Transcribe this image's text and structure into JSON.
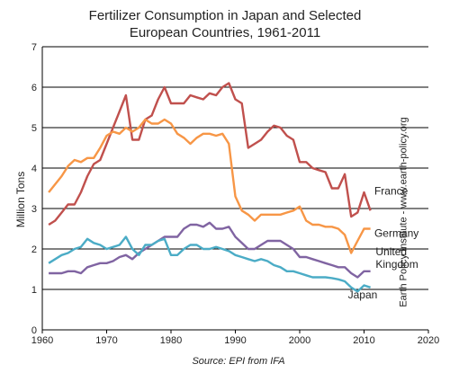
{
  "chart_data": {
    "type": "line",
    "title": [
      "Fertilizer Consumption in Japan and Selected",
      "European Countries, 1961-2011"
    ],
    "ylabel": "Million Tons",
    "source": "Source: EPI from IFA",
    "side_note": "Earth Policy Institute - www.earth-policy.org",
    "xlim": [
      1960,
      2020
    ],
    "ylim": [
      0,
      7
    ],
    "x_ticks": [
      1960,
      1970,
      1980,
      1990,
      2000,
      2010,
      2020
    ],
    "y_ticks": [
      0,
      1,
      2,
      3,
      4,
      5,
      6,
      7
    ],
    "grid": "horizontal",
    "x": [
      1961,
      1962,
      1963,
      1964,
      1965,
      1966,
      1967,
      1968,
      1969,
      1970,
      1971,
      1972,
      1973,
      1974,
      1975,
      1976,
      1977,
      1978,
      1979,
      1980,
      1981,
      1982,
      1983,
      1984,
      1985,
      1986,
      1987,
      1988,
      1989,
      1990,
      1991,
      1992,
      1993,
      1994,
      1995,
      1996,
      1997,
      1998,
      1999,
      2000,
      2001,
      2002,
      2003,
      2004,
      2005,
      2006,
      2007,
      2008,
      2009,
      2010,
      2011
    ],
    "series": [
      {
        "name": "France",
        "label": "France",
        "color": "#c0504d",
        "values": [
          2.6,
          2.7,
          2.9,
          3.1,
          3.1,
          3.4,
          3.8,
          4.1,
          4.2,
          4.6,
          5.0,
          5.4,
          5.8,
          4.7,
          4.7,
          5.2,
          5.3,
          5.7,
          6.0,
          5.6,
          5.6,
          5.6,
          5.8,
          5.75,
          5.7,
          5.85,
          5.8,
          6.0,
          6.1,
          5.7,
          5.6,
          4.5,
          4.6,
          4.7,
          4.9,
          5.05,
          5.0,
          4.8,
          4.7,
          4.15,
          4.15,
          4.0,
          3.95,
          3.9,
          3.5,
          3.5,
          3.85,
          2.8,
          2.9,
          3.4,
          2.95
        ]
      },
      {
        "name": "Germany",
        "label": "Germany",
        "color": "#f79646",
        "values": [
          3.4,
          3.6,
          3.8,
          4.05,
          4.2,
          4.15,
          4.25,
          4.25,
          4.5,
          4.8,
          4.9,
          4.85,
          5.0,
          4.9,
          5.0,
          5.2,
          5.1,
          5.1,
          5.2,
          5.1,
          4.85,
          4.75,
          4.6,
          4.75,
          4.85,
          4.85,
          4.8,
          4.85,
          4.6,
          3.3,
          2.95,
          2.85,
          2.7,
          2.85,
          2.85,
          2.85,
          2.85,
          2.9,
          2.95,
          3.05,
          2.7,
          2.6,
          2.6,
          2.55,
          2.55,
          2.5,
          2.35,
          1.9,
          2.2,
          2.5,
          2.5
        ]
      },
      {
        "name": "United Kingdom",
        "label": [
          "United",
          "Kingdom"
        ],
        "color": "#8064a2",
        "values": [
          1.4,
          1.4,
          1.4,
          1.45,
          1.45,
          1.4,
          1.55,
          1.6,
          1.65,
          1.65,
          1.7,
          1.8,
          1.85,
          1.75,
          1.9,
          2.0,
          2.1,
          2.2,
          2.3,
          2.3,
          2.3,
          2.5,
          2.6,
          2.6,
          2.55,
          2.65,
          2.5,
          2.5,
          2.55,
          2.3,
          2.15,
          2.0,
          2.0,
          2.1,
          2.2,
          2.2,
          2.2,
          2.1,
          2.0,
          1.8,
          1.8,
          1.75,
          1.7,
          1.65,
          1.6,
          1.55,
          1.55,
          1.4,
          1.3,
          1.45,
          1.45
        ]
      },
      {
        "name": "Japan",
        "label": "Japan",
        "color": "#4bacc6",
        "values": [
          1.65,
          1.75,
          1.85,
          1.9,
          2.0,
          2.05,
          2.25,
          2.15,
          2.1,
          2.0,
          2.05,
          2.1,
          2.3,
          2.0,
          1.85,
          2.1,
          2.1,
          2.2,
          2.25,
          1.85,
          1.85,
          2.0,
          2.1,
          2.1,
          2.0,
          2.0,
          2.05,
          2.0,
          1.95,
          1.85,
          1.8,
          1.75,
          1.7,
          1.75,
          1.7,
          1.6,
          1.55,
          1.45,
          1.45,
          1.4,
          1.35,
          1.3,
          1.3,
          1.3,
          1.28,
          1.25,
          1.2,
          1.05,
          0.95,
          1.1,
          1.05
        ]
      }
    ]
  }
}
